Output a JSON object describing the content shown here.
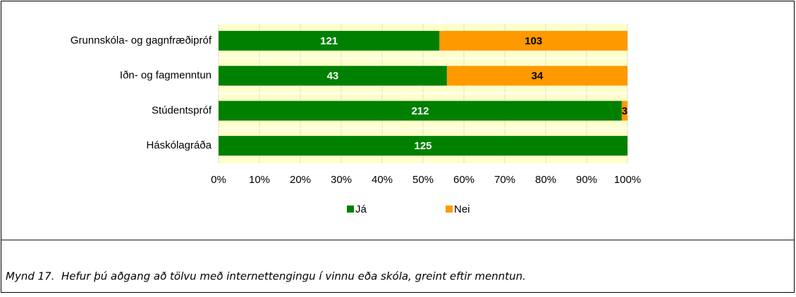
{
  "chart_data": {
    "type": "bar",
    "orientation": "horizontal",
    "stacking": "percent",
    "categories": [
      "Grunnskóla- og gagnfræðipróf",
      "Iðn- og fagmenntun",
      "Stúdentspróf",
      "Háskólagráða"
    ],
    "series": [
      {
        "name": "Já",
        "color": "#008000",
        "label_color": "#ffffff",
        "values": [
          121,
          43,
          212,
          125
        ]
      },
      {
        "name": "Nei",
        "color": "#ff9900",
        "label_color": "#000000",
        "values": [
          103,
          34,
          3,
          0
        ]
      }
    ],
    "xlim": [
      0,
      100
    ],
    "xticks": [
      {
        "value": 0,
        "label": "0%"
      },
      {
        "value": 10,
        "label": "10%"
      },
      {
        "value": 20,
        "label": "20%"
      },
      {
        "value": 30,
        "label": "30%"
      },
      {
        "value": 40,
        "label": "40%"
      },
      {
        "value": 50,
        "label": "50%"
      },
      {
        "value": 60,
        "label": "60%"
      },
      {
        "value": 70,
        "label": "70%"
      },
      {
        "value": 80,
        "label": "80%"
      },
      {
        "value": 90,
        "label": "90%"
      },
      {
        "value": 100,
        "label": "100%"
      }
    ],
    "grid": true,
    "legend": "bottom",
    "caption": "Mynd 17.  Hefur þú aðgang að tölvu með internettengingu í vinnu eða skóla, greint eftir menntun."
  }
}
